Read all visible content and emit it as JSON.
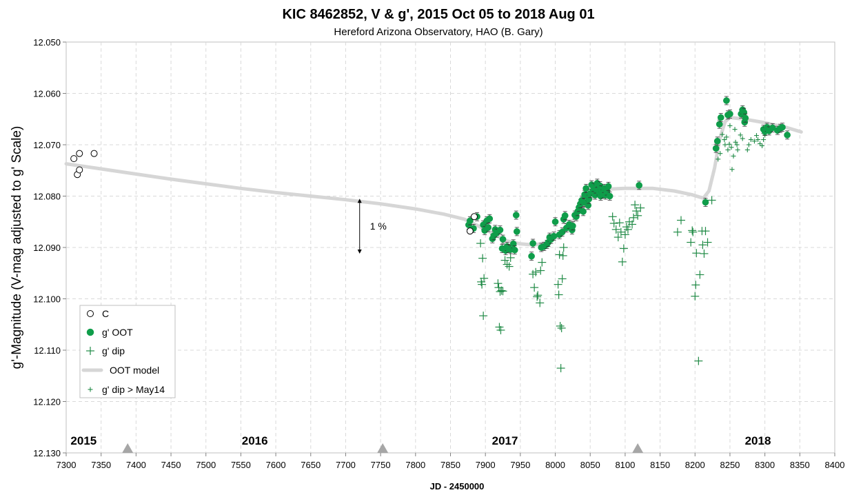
{
  "chart_data": {
    "type": "scatter",
    "title": "KIC 8462852, V & g', 2015 Oct 05 to 2018 Aug 01",
    "subtitle": "Hereford Arizona Observatory, HAO (B. Gary)",
    "xlabel": "JD - 2450000",
    "ylabel": "g'-Magnitude (V-mag adjusted to g' Scale)",
    "xlim": [
      7300,
      8400
    ],
    "ylim": [
      12.05,
      12.13
    ],
    "y_inverted": true,
    "grid": true,
    "legend_position": "bottom-left",
    "x_ticks": [
      "7300",
      "7350",
      "7400",
      "7450",
      "7500",
      "7550",
      "7600",
      "7650",
      "7700",
      "7750",
      "7800",
      "7850",
      "7900",
      "7950",
      "8000",
      "8050",
      "8100",
      "8150",
      "8200",
      "8250",
      "8300",
      "8350",
      "8400"
    ],
    "y_ticks": [
      "12.050",
      "12.060",
      "12.070",
      "12.080",
      "12.090",
      "12.100",
      "12.110",
      "12.120",
      "12.130"
    ],
    "year_labels": [
      {
        "text": "2015",
        "x": 7325
      },
      {
        "text": "2016",
        "x": 7570
      },
      {
        "text": "2017",
        "x": 7928
      },
      {
        "text": "2018",
        "x": 8290
      }
    ],
    "year_markers_x": [
      7388,
      7753,
      8118
    ],
    "annotation": {
      "text": "1 %",
      "x": 7720,
      "y_top": 12.0805,
      "y_bottom": 12.0912
    },
    "legend": [
      "C",
      "g' OOT",
      "g' dip",
      "OOT model",
      "g' dip > May14"
    ],
    "colors": {
      "oot": "#0f9d4a",
      "dip": "#1f8a45",
      "model": "#d6d6d6",
      "c": "#000000",
      "grid": "#d9d9d9"
    },
    "series": [
      {
        "name": "C",
        "marker": "open-circle",
        "points": [
          [
            7311,
            12.0727
          ],
          [
            7316,
            12.0758
          ],
          [
            7319,
            12.0717
          ],
          [
            7319,
            12.0749
          ],
          [
            7340,
            12.0717
          ],
          [
            7878,
            12.0868
          ],
          [
            7884,
            12.084
          ]
        ]
      },
      {
        "name": "g' OOT",
        "marker": "filled-circle",
        "points": [
          [
            7876,
            12.0856
          ],
          [
            7878,
            12.0848
          ],
          [
            7883,
            12.0863
          ],
          [
            7888,
            12.084
          ],
          [
            7897,
            12.0856
          ],
          [
            7899,
            12.0867
          ],
          [
            7902,
            12.0848
          ],
          [
            7904,
            12.0861
          ],
          [
            7906,
            12.0844
          ],
          [
            7910,
            12.0883
          ],
          [
            7912,
            12.0877
          ],
          [
            7914,
            12.0865
          ],
          [
            7916,
            12.0872
          ],
          [
            7921,
            12.0866
          ],
          [
            7924,
            12.0902
          ],
          [
            7925,
            12.0884
          ],
          [
            7929,
            12.0906
          ],
          [
            7931,
            12.0898
          ],
          [
            7933,
            12.0902
          ],
          [
            7936,
            12.0904
          ],
          [
            7940,
            12.0893
          ],
          [
            7942,
            12.0905
          ],
          [
            7944,
            12.0837
          ],
          [
            7945,
            12.0869
          ],
          [
            7966,
            12.0917
          ],
          [
            7968,
            12.0892
          ],
          [
            7980,
            12.09
          ],
          [
            7984,
            12.0898
          ],
          [
            7988,
            12.0894
          ],
          [
            7990,
            12.089
          ],
          [
            7992,
            12.088
          ],
          [
            7994,
            12.0884
          ],
          [
            7998,
            12.0878
          ],
          [
            8000,
            12.085
          ],
          [
            8006,
            12.0875
          ],
          [
            8010,
            12.087
          ],
          [
            8012,
            12.0845
          ],
          [
            8014,
            12.0838
          ],
          [
            8016,
            12.0862
          ],
          [
            8020,
            12.0855
          ],
          [
            8024,
            12.0866
          ],
          [
            8025,
            12.0858
          ],
          [
            8028,
            12.0837
          ],
          [
            8030,
            12.084
          ],
          [
            8032,
            12.083
          ],
          [
            8034,
            12.0822
          ],
          [
            8036,
            12.0815
          ],
          [
            8038,
            12.0808
          ],
          [
            8040,
            12.083
          ],
          [
            8041,
            12.0812
          ],
          [
            8042,
            12.0797
          ],
          [
            8044,
            12.0785
          ],
          [
            8046,
            12.08
          ],
          [
            8047,
            12.0818
          ],
          [
            8048,
            12.0806
          ],
          [
            8050,
            12.0795
          ],
          [
            8052,
            12.0778
          ],
          [
            8054,
            12.079
          ],
          [
            8055,
            12.0783
          ],
          [
            8057,
            12.0798
          ],
          [
            8058,
            12.0786
          ],
          [
            8060,
            12.0775
          ],
          [
            8062,
            12.079
          ],
          [
            8064,
            12.078
          ],
          [
            8065,
            12.08
          ],
          [
            8066,
            12.0788
          ],
          [
            8068,
            12.0796
          ],
          [
            8070,
            12.0785
          ],
          [
            8072,
            12.0798
          ],
          [
            8074,
            12.079
          ],
          [
            8076,
            12.0781
          ],
          [
            8078,
            12.08
          ],
          [
            8120,
            12.0779
          ],
          [
            8215,
            12.0812
          ],
          [
            8230,
            12.0707
          ],
          [
            8232,
            12.0693
          ],
          [
            8235,
            12.066
          ],
          [
            8237,
            12.0647
          ],
          [
            8245,
            12.0614
          ],
          [
            8247,
            12.0642
          ],
          [
            8250,
            12.064
          ],
          [
            8266,
            12.064
          ],
          [
            8268,
            12.0632
          ],
          [
            8270,
            12.0637
          ],
          [
            8271,
            12.0656
          ],
          [
            8272,
            12.0648
          ],
          [
            8298,
            12.067
          ],
          [
            8300,
            12.0674
          ],
          [
            8303,
            12.0666
          ],
          [
            8306,
            12.0673
          ],
          [
            8311,
            12.0667
          ],
          [
            8318,
            12.0672
          ],
          [
            8322,
            12.0668
          ],
          [
            8325,
            12.0666
          ],
          [
            8332,
            12.0681
          ]
        ]
      },
      {
        "name": "g' dip",
        "marker": "plus-large",
        "points": [
          [
            7893,
            12.0892
          ],
          [
            7894,
            12.0967
          ],
          [
            7895,
            12.0972
          ],
          [
            7896,
            12.0921
          ],
          [
            7897,
            12.1033
          ],
          [
            7898,
            12.096
          ],
          [
            7918,
            12.097
          ],
          [
            7919,
            12.0978
          ],
          [
            7920,
            12.1055
          ],
          [
            7921,
            12.0986
          ],
          [
            7922,
            12.1061
          ],
          [
            7923,
            12.0984
          ],
          [
            7925,
            12.0985
          ],
          [
            7928,
            12.0925
          ],
          [
            7931,
            12.0933
          ],
          [
            7934,
            12.0937
          ],
          [
            7936,
            12.092
          ],
          [
            7968,
            12.0952
          ],
          [
            7970,
            12.0978
          ],
          [
            7972,
            12.0948
          ],
          [
            7974,
            12.0996
          ],
          [
            7975,
            12.0993
          ],
          [
            7978,
            12.1008
          ],
          [
            7979,
            12.0945
          ],
          [
            7981,
            12.0929
          ],
          [
            8004,
            12.0972
          ],
          [
            8005,
            12.0992
          ],
          [
            8006,
            12.0914
          ],
          [
            8007,
            12.1053
          ],
          [
            8008,
            12.1135
          ],
          [
            8009,
            12.1057
          ],
          [
            8010,
            12.0961
          ],
          [
            8011,
            12.0916
          ],
          [
            8012,
            12.09
          ],
          [
            8082,
            12.084
          ],
          [
            8084,
            12.0853
          ],
          [
            8087,
            12.0865
          ],
          [
            8090,
            12.088
          ],
          [
            8092,
            12.0852
          ],
          [
            8094,
            12.087
          ],
          [
            8096,
            12.0928
          ],
          [
            8098,
            12.0902
          ],
          [
            8100,
            12.0875
          ],
          [
            8102,
            12.086
          ],
          [
            8104,
            12.0865
          ],
          [
            8106,
            12.085
          ],
          [
            8110,
            12.0855
          ],
          [
            8112,
            12.0842
          ],
          [
            8114,
            12.0817
          ],
          [
            8116,
            12.0829
          ],
          [
            8118,
            12.0838
          ],
          [
            8122,
            12.0823
          ],
          [
            8175,
            12.087
          ],
          [
            8180,
            12.0847
          ],
          [
            8194,
            12.089
          ],
          [
            8196,
            12.0867
          ],
          [
            8197,
            12.087
          ],
          [
            8200,
            12.0995
          ],
          [
            8201,
            12.0973
          ],
          [
            8202,
            12.0911
          ],
          [
            8205,
            12.1121
          ],
          [
            8207,
            12.0953
          ],
          [
            8210,
            12.0868
          ],
          [
            8211,
            12.0895
          ],
          [
            8213,
            12.0912
          ],
          [
            8215,
            12.0868
          ],
          [
            8218,
            12.089
          ],
          [
            8224,
            12.0808
          ]
        ]
      },
      {
        "name": "g' dip > May14",
        "marker": "plus-small",
        "points": [
          [
            8233,
            12.0728
          ],
          [
            8236,
            12.0717
          ],
          [
            8239,
            12.068
          ],
          [
            8242,
            12.069
          ],
          [
            8243,
            12.07
          ],
          [
            8245,
            12.0685
          ],
          [
            8247,
            12.071
          ],
          [
            8249,
            12.0699
          ],
          [
            8250,
            12.0663
          ],
          [
            8252,
            12.0705
          ],
          [
            8253,
            12.0748
          ],
          [
            8255,
            12.0722
          ],
          [
            8257,
            12.067
          ],
          [
            8258,
            12.0695
          ],
          [
            8260,
            12.07
          ],
          [
            8261,
            12.071
          ],
          [
            8265,
            12.0681
          ],
          [
            8268,
            12.0688
          ],
          [
            8271,
            12.0655
          ],
          [
            8275,
            12.071
          ],
          [
            8277,
            12.07
          ],
          [
            8280,
            12.069
          ],
          [
            8285,
            12.0693
          ],
          [
            8288,
            12.0682
          ],
          [
            8290,
            12.069
          ],
          [
            8293,
            12.0698
          ],
          [
            8296,
            12.0702
          ],
          [
            8298,
            12.069
          ],
          [
            8300,
            12.0681
          ]
        ]
      },
      {
        "name": "OOT model",
        "marker": "line",
        "points": [
          [
            7300,
            12.0737
          ],
          [
            7350,
            12.0747
          ],
          [
            7400,
            12.0757
          ],
          [
            7450,
            12.0767
          ],
          [
            7500,
            12.0776
          ],
          [
            7550,
            12.0785
          ],
          [
            7600,
            12.0793
          ],
          [
            7650,
            12.08
          ],
          [
            7700,
            12.0807
          ],
          [
            7750,
            12.0815
          ],
          [
            7800,
            12.0825
          ],
          [
            7840,
            12.0835
          ],
          [
            7870,
            12.0845
          ],
          [
            7900,
            12.0865
          ],
          [
            7930,
            12.0887
          ],
          [
            7950,
            12.0893
          ],
          [
            7970,
            12.0895
          ],
          [
            7990,
            12.089
          ],
          [
            8010,
            12.0872
          ],
          [
            8030,
            12.084
          ],
          [
            8045,
            12.0812
          ],
          [
            8060,
            12.0795
          ],
          [
            8080,
            12.0786
          ],
          [
            8100,
            12.0785
          ],
          [
            8140,
            12.0785
          ],
          [
            8170,
            12.079
          ],
          [
            8195,
            12.0797
          ],
          [
            8212,
            12.0804
          ],
          [
            8220,
            12.079
          ],
          [
            8228,
            12.0745
          ],
          [
            8235,
            12.069
          ],
          [
            8243,
            12.0655
          ],
          [
            8250,
            12.0647
          ],
          [
            8270,
            12.065
          ],
          [
            8300,
            12.0657
          ],
          [
            8330,
            12.0666
          ],
          [
            8352,
            12.0675
          ]
        ]
      }
    ]
  }
}
